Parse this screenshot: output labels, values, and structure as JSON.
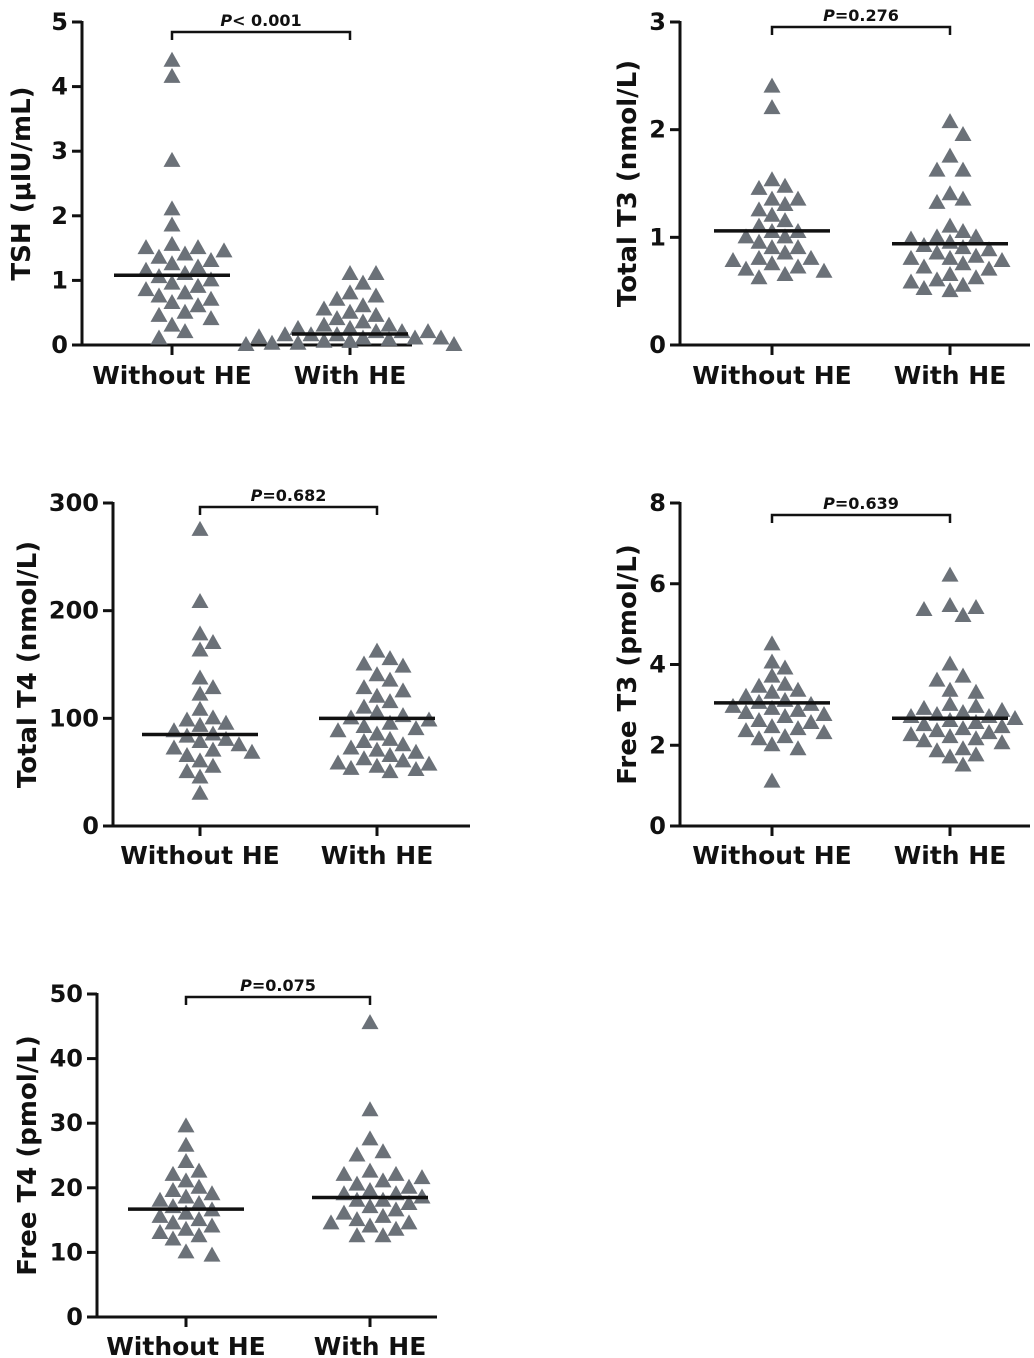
{
  "marker_color": "#6b7178",
  "chart_data": [
    {
      "type": "scatter",
      "title": "",
      "ylabel": "TSH (μIU/mL)",
      "ylim": [
        0,
        5
      ],
      "yticks": [
        "0",
        "1",
        "2",
        "3",
        "4",
        "5"
      ],
      "ytick_values": [
        0,
        1,
        2,
        3,
        4,
        5
      ],
      "categories": [
        "Without HE",
        "With HE"
      ],
      "p_prefix": "P",
      "p_text": "< 0.001",
      "medians": [
        1.08,
        0.17
      ],
      "series": [
        {
          "values": [
            4.4,
            4.15,
            2.85,
            2.1,
            1.85,
            1.55,
            1.5,
            1.5,
            1.45,
            1.4,
            1.35,
            1.3,
            1.25,
            1.2,
            1.15,
            1.1,
            1.05,
            1.0,
            0.95,
            0.9,
            0.85,
            0.8,
            0.75,
            0.7,
            0.65,
            0.6,
            0.5,
            0.45,
            0.4,
            0.3,
            0.2,
            0.1
          ]
        },
        {
          "values": [
            1.1,
            1.1,
            0.95,
            0.8,
            0.75,
            0.7,
            0.6,
            0.55,
            0.5,
            0.45,
            0.4,
            0.35,
            0.3,
            0.3,
            0.25,
            0.25,
            0.2,
            0.2,
            0.2,
            0.15,
            0.15,
            0.15,
            0.12,
            0.1,
            0.1,
            0.1,
            0.08,
            0.05,
            0.05,
            0.05,
            0.02,
            0.02,
            0.0,
            0.0
          ]
        }
      ]
    },
    {
      "type": "scatter",
      "title": "",
      "ylabel": "Total T3 (nmol/L)",
      "ylim": [
        0,
        3
      ],
      "yticks": [
        "0",
        "1",
        "2",
        "3"
      ],
      "ytick_values": [
        0,
        1,
        2,
        3
      ],
      "categories": [
        "Without HE",
        "With HE"
      ],
      "p_prefix": "P",
      "p_text": "=0.276",
      "medians": [
        1.06,
        0.94
      ],
      "series": [
        {
          "values": [
            2.4,
            2.2,
            1.53,
            1.47,
            1.45,
            1.35,
            1.35,
            1.3,
            1.25,
            1.2,
            1.15,
            1.1,
            1.05,
            1.05,
            1.0,
            1.0,
            0.95,
            0.9,
            0.9,
            0.85,
            0.8,
            0.8,
            0.78,
            0.75,
            0.72,
            0.7,
            0.68,
            0.65,
            0.62
          ]
        },
        {
          "values": [
            2.07,
            1.95,
            1.75,
            1.62,
            1.62,
            1.4,
            1.35,
            1.32,
            1.1,
            1.05,
            1.0,
            1.0,
            0.98,
            0.95,
            0.92,
            0.9,
            0.88,
            0.85,
            0.82,
            0.8,
            0.8,
            0.78,
            0.75,
            0.72,
            0.7,
            0.65,
            0.62,
            0.6,
            0.58,
            0.55,
            0.52,
            0.5
          ]
        }
      ]
    },
    {
      "type": "scatter",
      "title": "",
      "ylabel": "Total T4 (nmol/L)",
      "ylim": [
        0,
        300
      ],
      "yticks": [
        "0",
        "100",
        "200",
        "300"
      ],
      "ytick_values": [
        0,
        100,
        200,
        300
      ],
      "categories": [
        "Without HE",
        "With HE"
      ],
      "p_prefix": "P",
      "p_text": "=0.682",
      "medians": [
        85,
        100
      ],
      "series": [
        {
          "values": [
            275,
            208,
            178,
            170,
            163,
            137,
            128,
            122,
            108,
            100,
            98,
            95,
            93,
            88,
            85,
            83,
            80,
            78,
            75,
            72,
            70,
            68,
            65,
            60,
            55,
            50,
            45,
            30
          ]
        },
        {
          "values": [
            162,
            155,
            150,
            148,
            140,
            135,
            128,
            125,
            120,
            115,
            110,
            105,
            102,
            100,
            98,
            95,
            92,
            90,
            88,
            85,
            80,
            78,
            75,
            72,
            70,
            68,
            65,
            62,
            60,
            58,
            57,
            55,
            53,
            52,
            50
          ]
        }
      ]
    },
    {
      "type": "scatter",
      "title": "",
      "ylabel": "Free T3 (pmol/L)",
      "ylim": [
        0,
        8
      ],
      "yticks": [
        "0",
        "2",
        "4",
        "6",
        "8"
      ],
      "ytick_values": [
        0,
        2,
        4,
        6,
        8
      ],
      "categories": [
        "Without HE",
        "With HE"
      ],
      "p_prefix": "P",
      "p_text": "=0.639",
      "medians": [
        3.05,
        2.67
      ],
      "series": [
        {
          "values": [
            4.5,
            4.05,
            3.9,
            3.7,
            3.5,
            3.45,
            3.35,
            3.3,
            3.2,
            3.1,
            3.05,
            3.0,
            2.95,
            2.9,
            2.85,
            2.8,
            2.75,
            2.7,
            2.6,
            2.55,
            2.45,
            2.4,
            2.35,
            2.3,
            2.2,
            2.15,
            2.0,
            1.9,
            1.1
          ]
        },
        {
          "values": [
            6.2,
            5.45,
            5.4,
            5.35,
            5.2,
            4.0,
            3.7,
            3.6,
            3.35,
            3.3,
            3.0,
            2.95,
            2.9,
            2.85,
            2.8,
            2.75,
            2.7,
            2.7,
            2.65,
            2.6,
            2.55,
            2.5,
            2.45,
            2.4,
            2.35,
            2.3,
            2.25,
            2.2,
            2.15,
            2.1,
            2.05,
            1.9,
            1.85,
            1.75,
            1.7,
            1.5
          ]
        }
      ]
    },
    {
      "type": "scatter",
      "title": "",
      "ylabel": "Free T4 (pmol/L)",
      "ylim": [
        0,
        50
      ],
      "yticks": [
        "0",
        "10",
        "20",
        "30",
        "40",
        "50"
      ],
      "ytick_values": [
        0,
        10,
        20,
        30,
        40,
        50
      ],
      "categories": [
        "Without HE",
        "With HE"
      ],
      "p_prefix": "P",
      "p_text": "=0.075",
      "medians": [
        16.7,
        18.5
      ],
      "series": [
        {
          "values": [
            29.5,
            26.5,
            24,
            22.5,
            22,
            21,
            20,
            19.5,
            19,
            18.5,
            18,
            17.5,
            17,
            16.5,
            16,
            15.5,
            15,
            14.5,
            14,
            13.5,
            13,
            12.5,
            12,
            10,
            9.5
          ]
        },
        {
          "values": [
            45.5,
            32,
            27.5,
            25.5,
            25,
            22.5,
            22,
            22,
            21.5,
            21,
            20.5,
            20,
            19.5,
            19,
            19,
            18.5,
            18,
            18,
            17.5,
            17,
            16.5,
            16,
            15.5,
            15,
            14.5,
            14.5,
            14,
            13.5,
            12.5,
            12.5
          ]
        }
      ]
    }
  ]
}
